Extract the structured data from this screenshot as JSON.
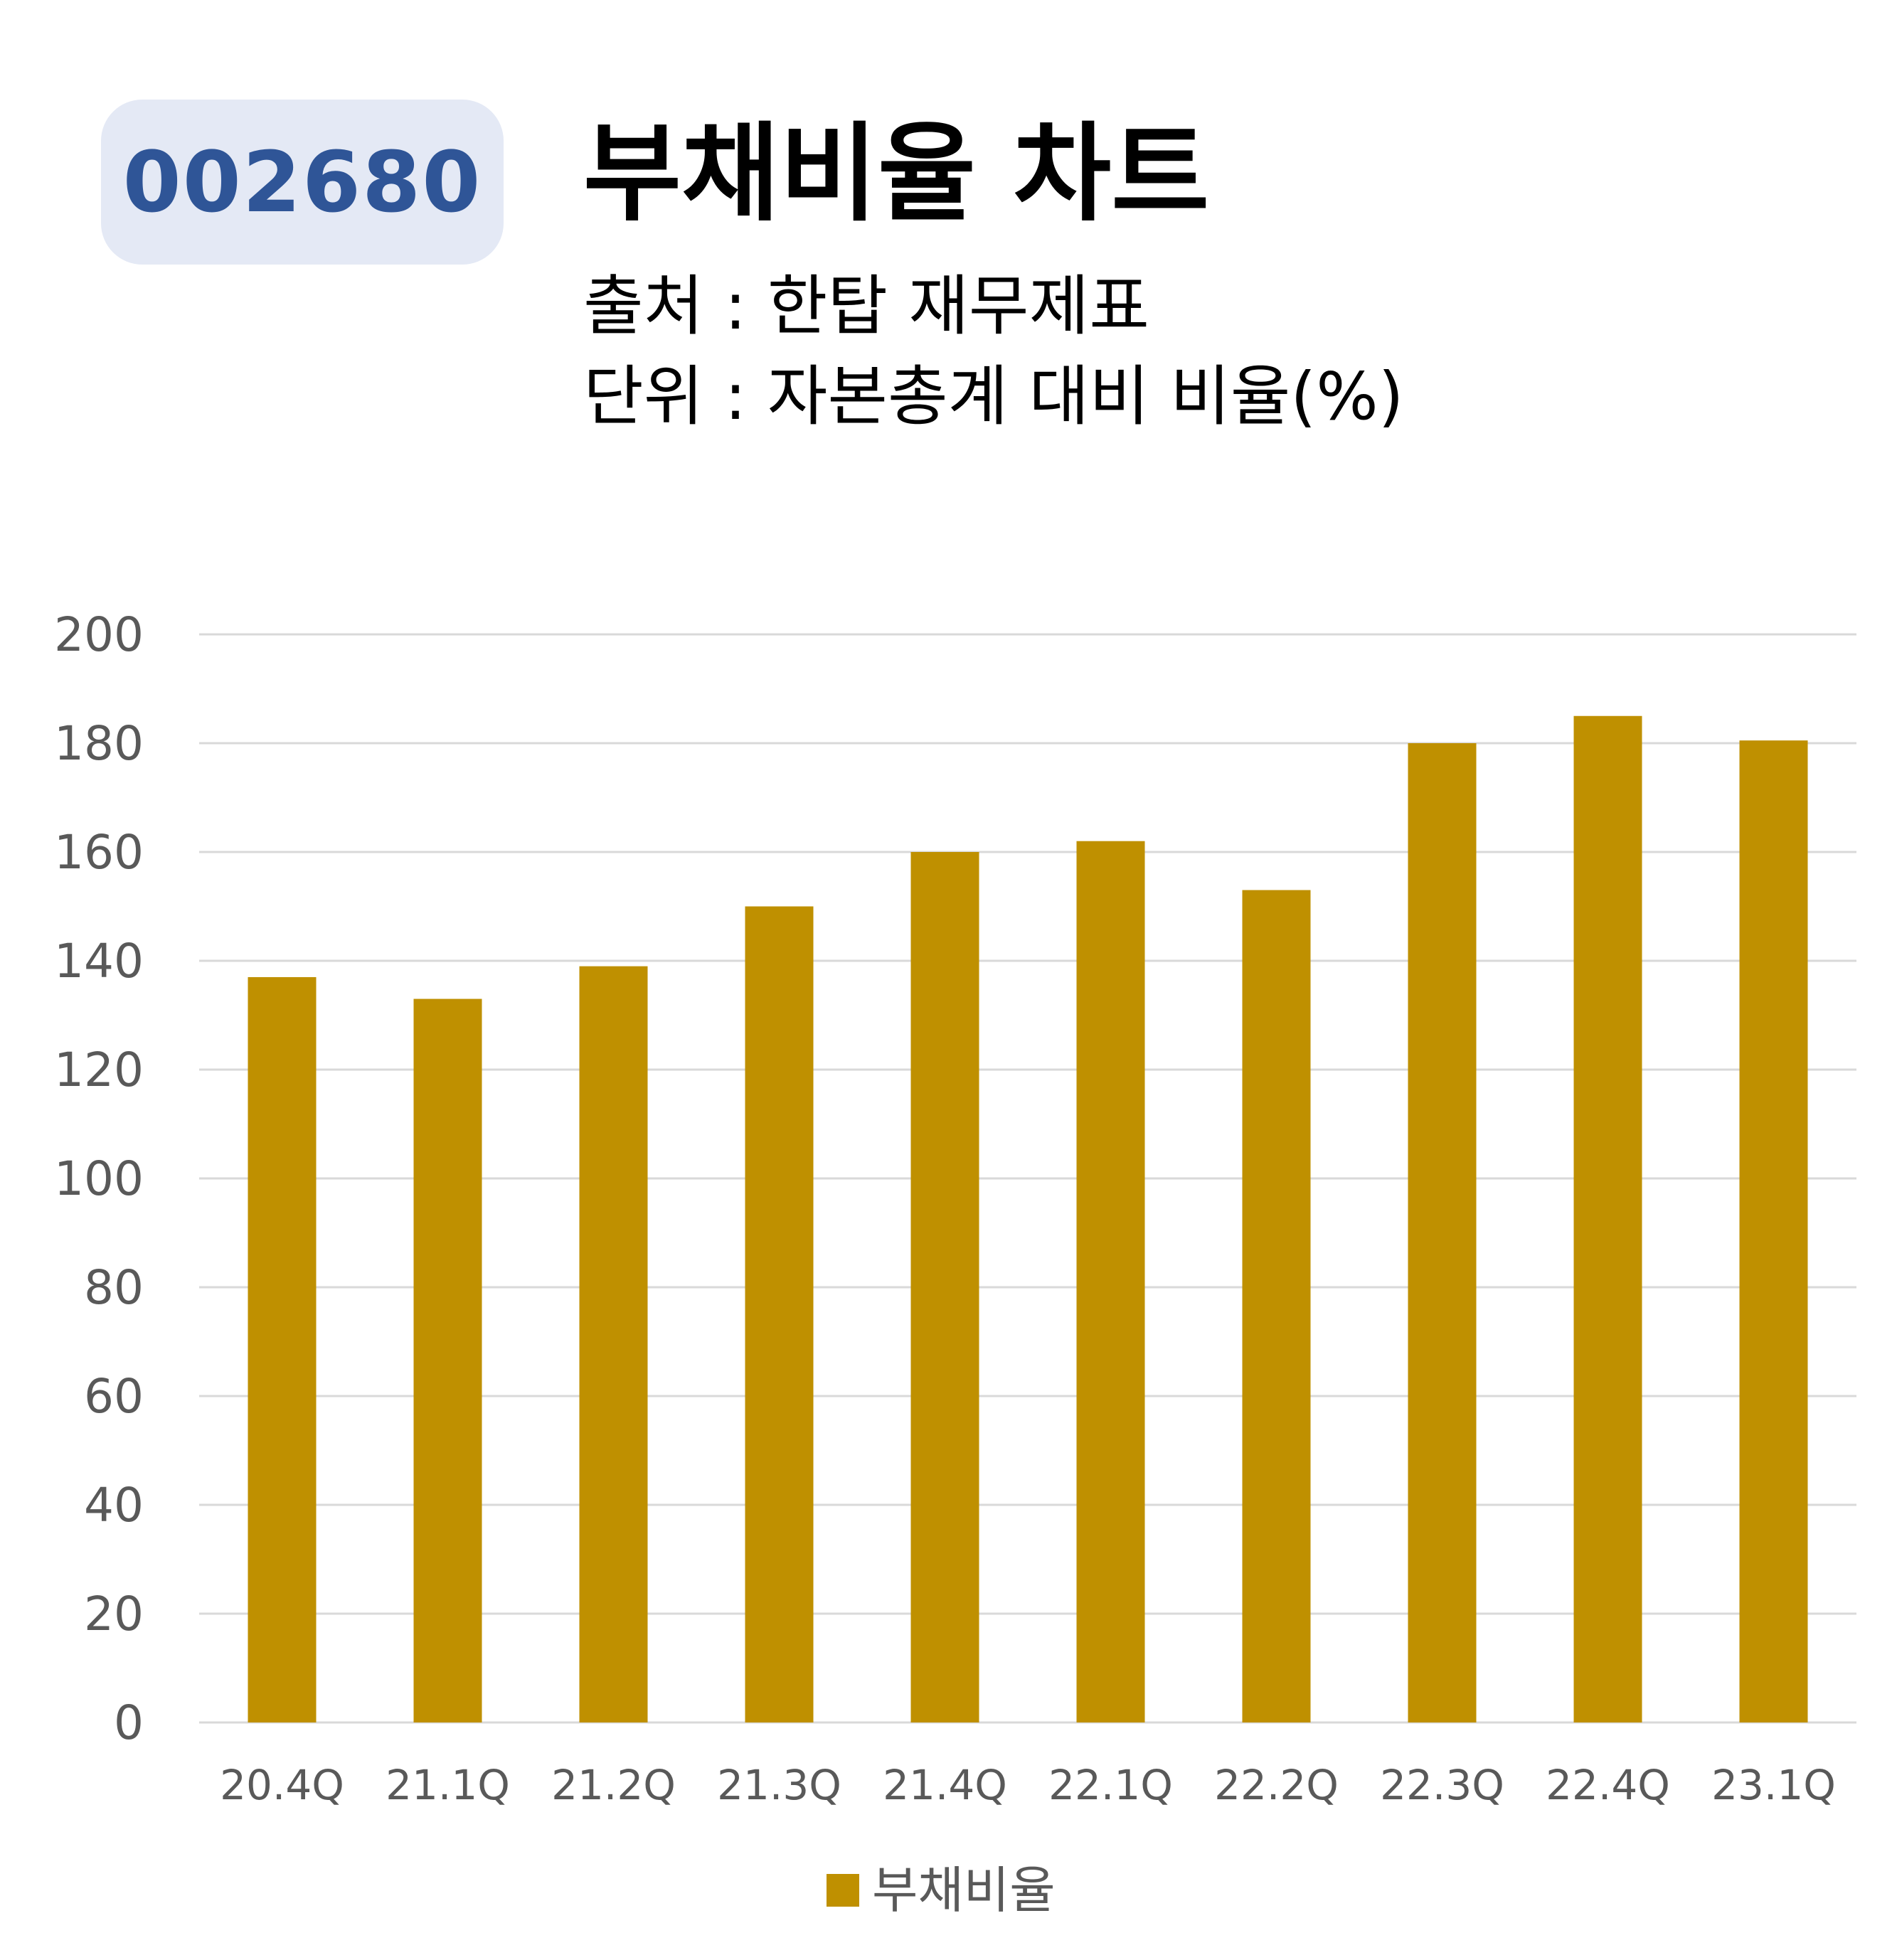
{
  "header": {
    "code": "002680",
    "title": "부채비율 차트",
    "source_line": "출처 : 한탑 재무제표",
    "unit_line": "단위 : 자본총계 대비 비율(%)"
  },
  "chart_data": {
    "type": "bar",
    "title": "부채비율 차트",
    "xlabel": "",
    "ylabel": "",
    "categories": [
      "20.4Q",
      "21.1Q",
      "21.2Q",
      "21.3Q",
      "21.4Q",
      "22.1Q",
      "22.2Q",
      "22.3Q",
      "22.4Q",
      "23.1Q"
    ],
    "series": [
      {
        "name": "부채비율",
        "color": "#bf9000",
        "values": [
          137,
          133,
          139,
          150,
          160,
          162,
          153,
          180,
          185,
          180.5
        ]
      }
    ],
    "ylim": [
      0,
      200
    ],
    "yticks": [
      0,
      20,
      40,
      60,
      80,
      100,
      120,
      140,
      160,
      180,
      200
    ],
    "grid": true,
    "legend": "bottom-center"
  }
}
